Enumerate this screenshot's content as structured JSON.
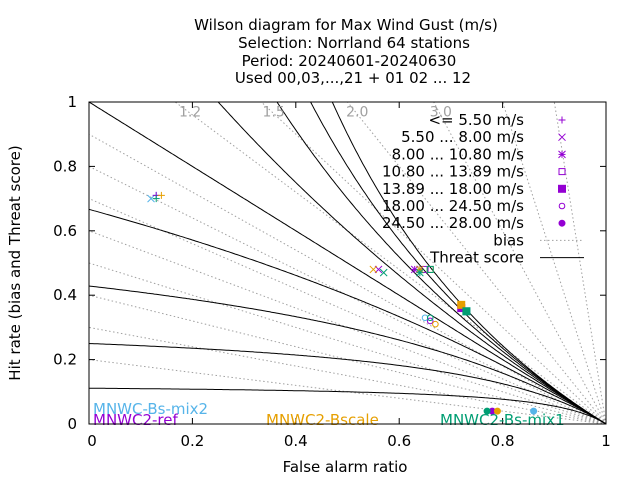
{
  "chart_data": {
    "type": "scatter",
    "title_lines": [
      "Wilson diagram  for Max Wind Gust (m/s)",
      "Selection: Norrland     64 stations",
      "Period: 20240601-20240630",
      "Used 00,03,...,21 + 01 02 ... 12"
    ],
    "xlabel": "False alarm ratio",
    "ylabel": "Hit rate (bias and Threat score)",
    "xlim": [
      0,
      1
    ],
    "ylim": [
      0,
      1
    ],
    "x_ticks": [
      "0",
      "0.2",
      "0.4",
      "0.6",
      "0.8",
      "1"
    ],
    "y_ticks": [
      "0",
      "0.2",
      "0.4",
      "0.6",
      "0.8",
      "1"
    ],
    "bias_labels": [
      "1.2",
      "1.5",
      "2.0",
      "3.0"
    ],
    "bias_values": [
      0.2,
      0.3,
      0.4,
      0.5,
      0.6,
      0.7,
      0.8,
      0.9,
      1.0,
      1.2,
      1.5,
      2.0,
      3.0,
      5.0,
      10.0
    ],
    "threat_scores": [
      0.1,
      0.2,
      0.3,
      0.4,
      0.5,
      0.6,
      0.7,
      0.8,
      0.9
    ],
    "legend_placement": "top-right",
    "legend": [
      {
        "label": "<= 5.50 m/s",
        "marker": "plus",
        "color": "#9400d3"
      },
      {
        "label": "5.50 ... 8.00 m/s",
        "marker": "cross",
        "color": "#9400d3"
      },
      {
        "label": "8.00 ... 10.80 m/s",
        "marker": "star",
        "color": "#9400d3"
      },
      {
        "label": "10.80 ... 13.89 m/s",
        "marker": "box",
        "color": "#9400d3"
      },
      {
        "label": "13.89 ... 18.00 m/s",
        "marker": "filled-box",
        "color": "#9400d3"
      },
      {
        "label": "18.00 ... 24.50 m/s",
        "marker": "circle",
        "color": "#9400d3"
      },
      {
        "label": "24.50 ... 28.00 m/s",
        "marker": "filled-circle",
        "color": "#9400d3"
      },
      {
        "label": "bias",
        "marker": "dotted-line",
        "color": "#a0a0a0"
      },
      {
        "label": "Threat score",
        "marker": "solid-line",
        "color": "#000000"
      }
    ],
    "model_labels": [
      {
        "name": "MNWC-Bs-mix2",
        "color": "#56b4e9"
      },
      {
        "name": "MNWC2-ref",
        "color": "#9400d3"
      },
      {
        "name": "MNWC2-Bscale",
        "color": "#e69f00"
      },
      {
        "name": "MNWC2-Bs-mix1",
        "color": "#009e73"
      }
    ],
    "series": [
      {
        "model": "MNWC-Bs-mix2",
        "color": "#56b4e9",
        "points": [
          {
            "cls": "plus",
            "x": 0.13,
            "y": 0.71
          },
          {
            "cls": "cross",
            "x": 0.12,
            "y": 0.7
          },
          {
            "cls": "star",
            "x": 0.64,
            "y": 0.48
          },
          {
            "cls": "box",
            "x": 0.66,
            "y": 0.48
          },
          {
            "cls": "filled-box",
            "x": 0.73,
            "y": 0.35
          },
          {
            "cls": "circle",
            "x": 0.65,
            "y": 0.33
          },
          {
            "cls": "filled-circle",
            "x": 0.86,
            "y": 0.04
          }
        ]
      },
      {
        "model": "MNWC2-ref",
        "color": "#9400d3",
        "points": [
          {
            "cls": "plus",
            "x": 0.13,
            "y": 0.71
          },
          {
            "cls": "cross",
            "x": 0.56,
            "y": 0.48
          },
          {
            "cls": "star",
            "x": 0.63,
            "y": 0.48
          },
          {
            "cls": "box",
            "x": 0.65,
            "y": 0.48
          },
          {
            "cls": "filled-box",
            "x": 0.72,
            "y": 0.36
          },
          {
            "cls": "circle",
            "x": 0.66,
            "y": 0.32
          },
          {
            "cls": "filled-circle",
            "x": 0.78,
            "y": 0.04
          }
        ]
      },
      {
        "model": "MNWC2-Bscale",
        "color": "#e69f00",
        "points": [
          {
            "cls": "plus",
            "x": 0.14,
            "y": 0.71
          },
          {
            "cls": "cross",
            "x": 0.55,
            "y": 0.48
          },
          {
            "cls": "star",
            "x": 0.64,
            "y": 0.48
          },
          {
            "cls": "box",
            "x": 0.66,
            "y": 0.48
          },
          {
            "cls": "filled-box",
            "x": 0.72,
            "y": 0.37
          },
          {
            "cls": "circle",
            "x": 0.67,
            "y": 0.31
          },
          {
            "cls": "filled-circle",
            "x": 0.79,
            "y": 0.04
          }
        ]
      },
      {
        "model": "MNWC2-Bs-mix1",
        "color": "#009e73",
        "points": [
          {
            "cls": "plus",
            "x": 0.13,
            "y": 0.7
          },
          {
            "cls": "cross",
            "x": 0.57,
            "y": 0.47
          },
          {
            "cls": "star",
            "x": 0.64,
            "y": 0.47
          },
          {
            "cls": "box",
            "x": 0.66,
            "y": 0.48
          },
          {
            "cls": "filled-box",
            "x": 0.73,
            "y": 0.35
          },
          {
            "cls": "circle",
            "x": 0.66,
            "y": 0.33
          },
          {
            "cls": "filled-circle",
            "x": 0.77,
            "y": 0.04
          }
        ]
      }
    ]
  }
}
